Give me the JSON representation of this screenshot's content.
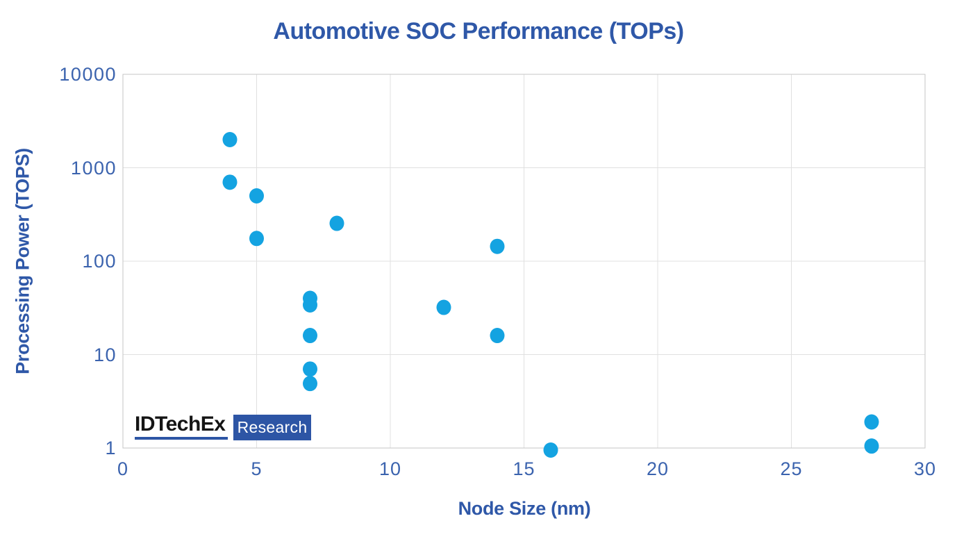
{
  "chart_data": {
    "type": "scatter",
    "title": "Automotive SOC Performance (TOPs)",
    "xlabel": "Node Size (nm)",
    "ylabel": "Processing Power (TOPS)",
    "x_axis": {
      "min": 0,
      "max": 30,
      "ticks": [
        0,
        5,
        10,
        15,
        20,
        25,
        30
      ]
    },
    "y_axis": {
      "scale": "log",
      "min": 1,
      "max": 10000,
      "ticks": [
        1,
        10,
        100,
        1000,
        10000
      ]
    },
    "grid": true,
    "legend": false,
    "point_color": "#14a3e1",
    "points": [
      {
        "node_nm": 4,
        "tops": 2000
      },
      {
        "node_nm": 4,
        "tops": 700
      },
      {
        "node_nm": 5,
        "tops": 500
      },
      {
        "node_nm": 8,
        "tops": 254
      },
      {
        "node_nm": 5,
        "tops": 175
      },
      {
        "node_nm": 14,
        "tops": 144
      },
      {
        "node_nm": 7,
        "tops": 40
      },
      {
        "node_nm": 7,
        "tops": 34
      },
      {
        "node_nm": 12,
        "tops": 32
      },
      {
        "node_nm": 7,
        "tops": 16
      },
      {
        "node_nm": 14,
        "tops": 16
      },
      {
        "node_nm": 7,
        "tops": 7
      },
      {
        "node_nm": 7,
        "tops": 4.9
      },
      {
        "node_nm": 28,
        "tops": 1.9
      },
      {
        "node_nm": 28,
        "tops": 1.05
      },
      {
        "node_nm": 16,
        "tops": 0.95
      }
    ]
  },
  "branding": {
    "brand": "IDTechEx",
    "label": "Research",
    "brand_text_color": "#151515",
    "accent_color": "#2d55a5"
  },
  "colors": {
    "title_text": "#2f58a8",
    "tick_text": "#3b63ae",
    "gridline": "#e0e0e0",
    "plot_border": "#c6c6c6",
    "background": "#ffffff"
  }
}
